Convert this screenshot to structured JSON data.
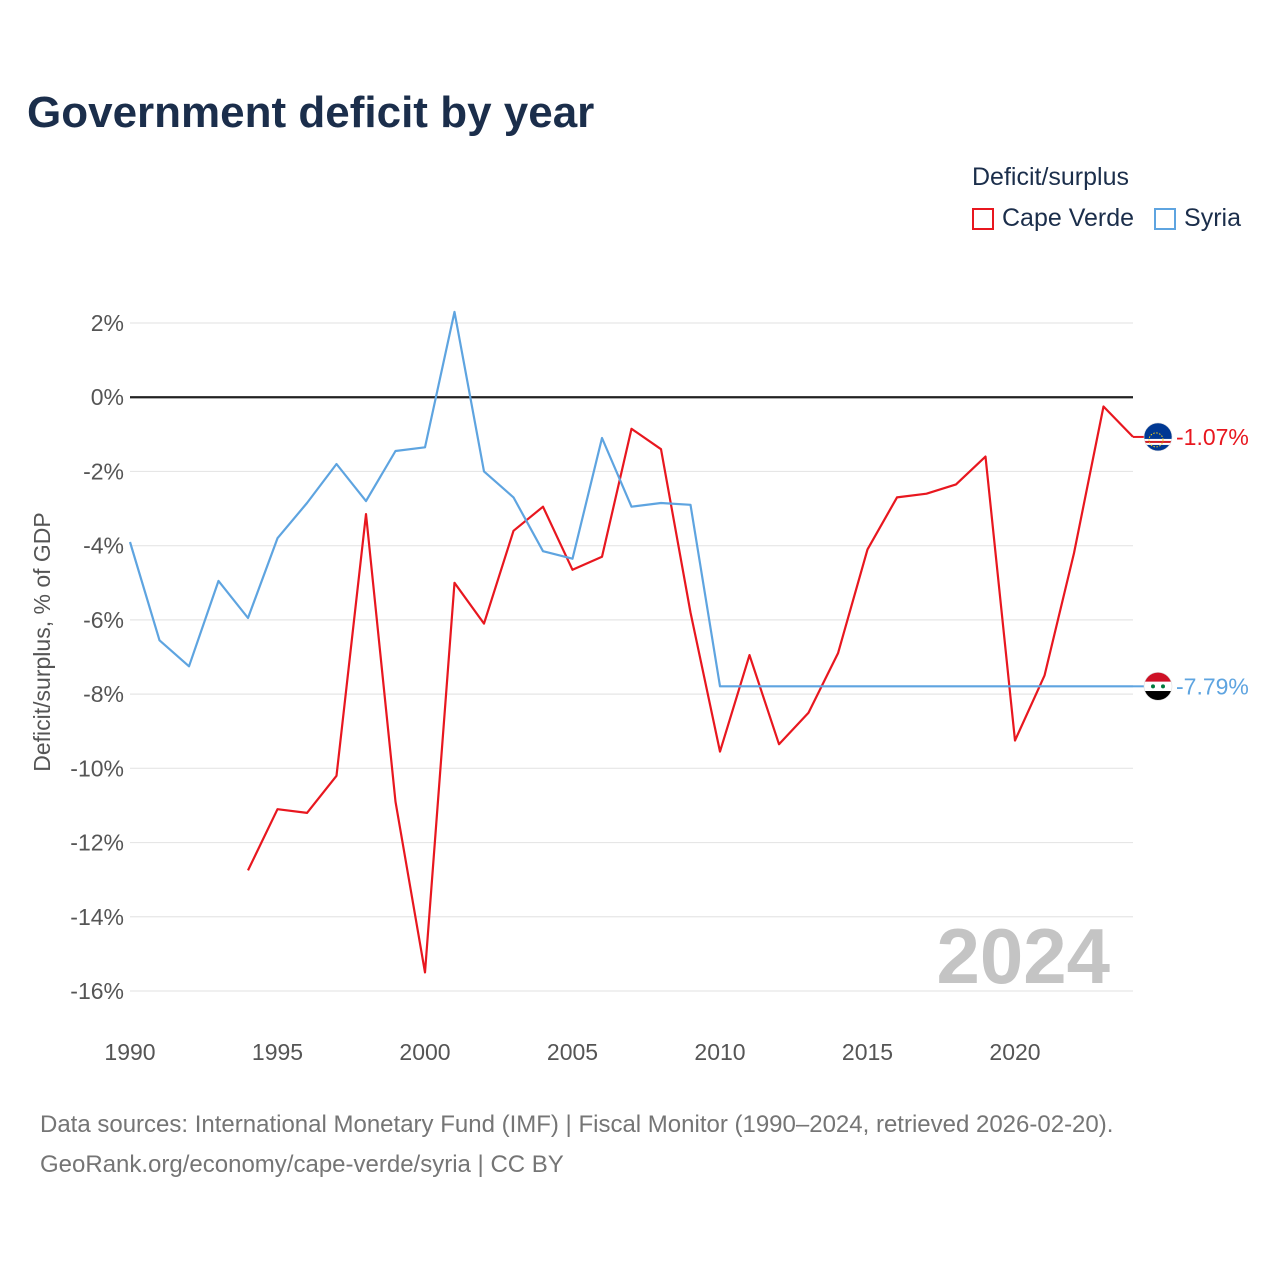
{
  "title": "Government deficit by year",
  "legend": {
    "title": "Deficit/surplus",
    "items": [
      {
        "label": "Cape Verde",
        "color": "#e8171f"
      },
      {
        "label": "Syria",
        "color": "#5ea4e0"
      }
    ]
  },
  "year_watermark": "2024",
  "sources": {
    "line1": "Data sources: International Monetary Fund (IMF) | Fiscal Monitor (1990–2024, retrieved 2026-02-20).",
    "line2": "GeoRank.org/economy/cape-verde/syria | CC BY"
  },
  "chart_data": {
    "type": "line",
    "ylabel": "Deficit/surplus, % of GDP",
    "xlabel": "",
    "xlim": [
      1990,
      2024
    ],
    "ylim": [
      -17,
      2.6
    ],
    "x_ticks": [
      1990,
      1995,
      2000,
      2005,
      2010,
      2015,
      2020
    ],
    "y_ticks": [
      {
        "value": 2,
        "label": "2%"
      },
      {
        "value": 0,
        "label": "0%"
      },
      {
        "value": -2,
        "label": "-2%"
      },
      {
        "value": -4,
        "label": "-4%"
      },
      {
        "value": -6,
        "label": "-6%"
      },
      {
        "value": -8,
        "label": "-8%"
      },
      {
        "value": -10,
        "label": "-10%"
      },
      {
        "value": -12,
        "label": "-12%"
      },
      {
        "value": -14,
        "label": "-14%"
      },
      {
        "value": -16,
        "label": "-16%"
      }
    ],
    "series": [
      {
        "name": "Cape Verde",
        "color": "#e8171f",
        "end_label": "-1.07%",
        "flag": "cape-verde-flag-icon",
        "points": [
          [
            1994,
            -12.75
          ],
          [
            1995,
            -11.1
          ],
          [
            1996,
            -11.2
          ],
          [
            1997,
            -10.2
          ],
          [
            1998,
            -3.15
          ],
          [
            1999,
            -10.9
          ],
          [
            2000,
            -15.5
          ],
          [
            2001,
            -5.0
          ],
          [
            2002,
            -6.1
          ],
          [
            2003,
            -3.6
          ],
          [
            2004,
            -2.95
          ],
          [
            2005,
            -4.65
          ],
          [
            2006,
            -4.3
          ],
          [
            2007,
            -0.85
          ],
          [
            2008,
            -1.4
          ],
          [
            2009,
            -5.8
          ],
          [
            2010,
            -9.55
          ],
          [
            2011,
            -6.95
          ],
          [
            2012,
            -9.35
          ],
          [
            2013,
            -8.5
          ],
          [
            2014,
            -6.9
          ],
          [
            2015,
            -4.1
          ],
          [
            2016,
            -2.7
          ],
          [
            2017,
            -2.6
          ],
          [
            2018,
            -2.35
          ],
          [
            2019,
            -1.6
          ],
          [
            2020,
            -9.25
          ],
          [
            2021,
            -7.5
          ],
          [
            2022,
            -4.2
          ],
          [
            2023,
            -0.25
          ],
          [
            2024,
            -1.07
          ]
        ]
      },
      {
        "name": "Syria",
        "color": "#5ea4e0",
        "end_label": "-7.79%",
        "flag": "syria-flag-icon",
        "points": [
          [
            1990,
            -3.9
          ],
          [
            1991,
            -6.55
          ],
          [
            1992,
            -7.25
          ],
          [
            1993,
            -4.95
          ],
          [
            1994,
            -5.95
          ],
          [
            1995,
            -3.8
          ],
          [
            1996,
            -2.85
          ],
          [
            1997,
            -1.8
          ],
          [
            1998,
            -2.8
          ],
          [
            1999,
            -1.45
          ],
          [
            2000,
            -1.35
          ],
          [
            2001,
            2.3
          ],
          [
            2002,
            -2.0
          ],
          [
            2003,
            -2.7
          ],
          [
            2004,
            -4.15
          ],
          [
            2005,
            -4.35
          ],
          [
            2006,
            -1.1
          ],
          [
            2007,
            -2.95
          ],
          [
            2008,
            -2.85
          ],
          [
            2009,
            -2.9
          ],
          [
            2010,
            -7.79
          ],
          [
            2011,
            -7.79
          ],
          [
            2012,
            -7.79
          ],
          [
            2013,
            -7.79
          ],
          [
            2014,
            -7.79
          ],
          [
            2015,
            -7.79
          ],
          [
            2016,
            -7.79
          ],
          [
            2017,
            -7.79
          ],
          [
            2018,
            -7.79
          ],
          [
            2019,
            -7.79
          ],
          [
            2020,
            -7.79
          ],
          [
            2021,
            -7.79
          ],
          [
            2022,
            -7.79
          ],
          [
            2023,
            -7.79
          ],
          [
            2024,
            -7.79
          ]
        ]
      }
    ]
  }
}
